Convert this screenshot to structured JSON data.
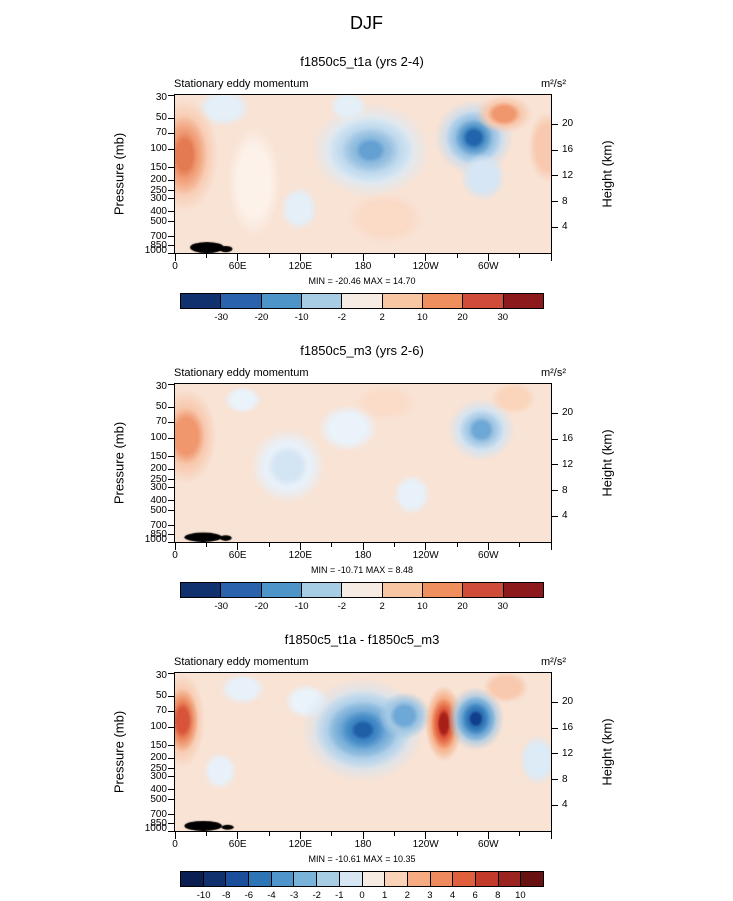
{
  "page_title": "DJF",
  "chart_data": [
    {
      "type": "heatmap",
      "title": "f1850c5_t1a (yrs 2-4)",
      "subtitle": "Stationary eddy momentum",
      "units": "m²/s²",
      "min": -20.46,
      "max": 14.7,
      "minmax_text": "MIN = -20.46  MAX = 14.70",
      "x": {
        "ticks": [
          "0",
          "60E",
          "120E",
          "180",
          "120W",
          "60W"
        ],
        "range_deg": [
          0,
          360
        ]
      },
      "y_pressure": {
        "label": "Pressure (mb)",
        "scale": "log",
        "ticks": [
          30,
          50,
          70,
          100,
          150,
          200,
          250,
          300,
          400,
          500,
          700,
          850,
          1000
        ]
      },
      "y_height": {
        "label": "Height (km)",
        "ticks": [
          20,
          16,
          12,
          8,
          4
        ]
      },
      "colorbar": {
        "labels": [
          "-30",
          "-20",
          "-10",
          "-2",
          "2",
          "10",
          "20",
          "30"
        ],
        "colors": [
          "#10306e",
          "#2a62ad",
          "#4d94c9",
          "#a6cde4",
          "#f6ece3",
          "#f9c6a4",
          "#ef8f5e",
          "#cf4c38",
          "#8c1a1c"
        ]
      },
      "field": {
        "base": "#f9e3d5",
        "features": [
          {
            "x": 0.13,
            "y": 0.08,
            "rings": [
              {
                "rx": 0.07,
                "ry": 0.12,
                "color": "#e4eff8"
              }
            ]
          },
          {
            "x": 0.025,
            "y": 0.38,
            "rings": [
              {
                "rx": 0.09,
                "ry": 0.36,
                "color": "#f8c9ae"
              },
              {
                "rx": 0.06,
                "ry": 0.25,
                "color": "#f19e77"
              },
              {
                "rx": 0.035,
                "ry": 0.15,
                "color": "#e47a52"
              }
            ]
          },
          {
            "x": 0.21,
            "y": 0.55,
            "rings": [
              {
                "rx": 0.07,
                "ry": 0.35,
                "color": "#fdf2ea"
              }
            ]
          },
          {
            "x": 0.33,
            "y": 0.72,
            "rings": [
              {
                "rx": 0.05,
                "ry": 0.14,
                "color": "#e4eff8"
              }
            ]
          },
          {
            "x": 0.52,
            "y": 0.35,
            "rings": [
              {
                "rx": 0.16,
                "ry": 0.3,
                "color": "#dcebf6"
              },
              {
                "rx": 0.115,
                "ry": 0.21,
                "color": "#b9d5eb"
              },
              {
                "rx": 0.075,
                "ry": 0.14,
                "color": "#8fbcdf"
              },
              {
                "rx": 0.042,
                "ry": 0.08,
                "color": "#64a1d2"
              }
            ]
          },
          {
            "x": 0.46,
            "y": 0.07,
            "rings": [
              {
                "rx": 0.05,
                "ry": 0.09,
                "color": "#e4eff8"
              }
            ]
          },
          {
            "x": 0.795,
            "y": 0.27,
            "rings": [
              {
                "rx": 0.105,
                "ry": 0.24,
                "color": "#c6dcf0"
              },
              {
                "rx": 0.075,
                "ry": 0.17,
                "color": "#8fbcdf"
              },
              {
                "rx": 0.05,
                "ry": 0.115,
                "color": "#4f92c9"
              },
              {
                "rx": 0.03,
                "ry": 0.07,
                "color": "#2166ac"
              }
            ]
          },
          {
            "x": 0.82,
            "y": 0.52,
            "rings": [
              {
                "rx": 0.06,
                "ry": 0.15,
                "color": "#d6e6f4"
              }
            ]
          },
          {
            "x": 0.875,
            "y": 0.12,
            "rings": [
              {
                "rx": 0.075,
                "ry": 0.12,
                "color": "#f8c9ae"
              },
              {
                "rx": 0.045,
                "ry": 0.075,
                "color": "#f0976e"
              }
            ]
          },
          {
            "x": 0.99,
            "y": 0.33,
            "rings": [
              {
                "rx": 0.05,
                "ry": 0.22,
                "color": "#f8c9ae"
              }
            ]
          },
          {
            "x": 0.56,
            "y": 0.78,
            "rings": [
              {
                "rx": 0.1,
                "ry": 0.16,
                "color": "#fbdac6"
              }
            ]
          },
          {
            "x": 0.085,
            "y": 0.965,
            "hard": true,
            "rings": [
              {
                "rx": 0.045,
                "ry": 0.035,
                "color": "#000000"
              }
            ]
          },
          {
            "x": 0.135,
            "y": 0.975,
            "hard": true,
            "rings": [
              {
                "rx": 0.018,
                "ry": 0.02,
                "color": "#000000"
              }
            ]
          }
        ]
      }
    },
    {
      "type": "heatmap",
      "title": "f1850c5_m3 (yrs 2-6)",
      "subtitle": "Stationary eddy momentum",
      "units": "m²/s²",
      "min": -10.71,
      "max": 8.48,
      "minmax_text": "MIN = -10.71  MAX = 8.48",
      "x": {
        "ticks": [
          "0",
          "60E",
          "120E",
          "180",
          "120W",
          "60W"
        ],
        "range_deg": [
          0,
          360
        ]
      },
      "y_pressure": {
        "label": "Pressure (mb)",
        "scale": "log",
        "ticks": [
          30,
          50,
          70,
          100,
          150,
          200,
          250,
          300,
          400,
          500,
          700,
          850,
          1000
        ]
      },
      "y_height": {
        "label": "Height (km)",
        "ticks": [
          20,
          16,
          12,
          8,
          4
        ]
      },
      "colorbar": {
        "labels": [
          "-30",
          "-20",
          "-10",
          "-2",
          "2",
          "10",
          "20",
          "30"
        ],
        "colors": [
          "#10306e",
          "#2a62ad",
          "#4d94c9",
          "#a6cde4",
          "#f6ece3",
          "#f9c6a4",
          "#ef8f5e",
          "#cf4c38",
          "#8c1a1c"
        ]
      },
      "field": {
        "base": "#f9e3d5",
        "features": [
          {
            "x": 0.03,
            "y": 0.33,
            "rings": [
              {
                "rx": 0.08,
                "ry": 0.3,
                "color": "#f8c9ae"
              },
              {
                "rx": 0.05,
                "ry": 0.18,
                "color": "#f0976e"
              }
            ]
          },
          {
            "x": 0.3,
            "y": 0.52,
            "rings": [
              {
                "rx": 0.1,
                "ry": 0.24,
                "color": "#e8f1f9"
              },
              {
                "rx": 0.055,
                "ry": 0.13,
                "color": "#d3e4f3"
              }
            ]
          },
          {
            "x": 0.46,
            "y": 0.28,
            "rings": [
              {
                "rx": 0.08,
                "ry": 0.15,
                "color": "#eaf2fa"
              }
            ]
          },
          {
            "x": 0.815,
            "y": 0.29,
            "rings": [
              {
                "rx": 0.09,
                "ry": 0.2,
                "color": "#d3e4f3"
              },
              {
                "rx": 0.06,
                "ry": 0.13,
                "color": "#a3c8e4"
              },
              {
                "rx": 0.035,
                "ry": 0.08,
                "color": "#6ea8d6"
              }
            ]
          },
          {
            "x": 0.9,
            "y": 0.09,
            "rings": [
              {
                "rx": 0.06,
                "ry": 0.1,
                "color": "#fad5bb"
              }
            ]
          },
          {
            "x": 0.56,
            "y": 0.12,
            "rings": [
              {
                "rx": 0.08,
                "ry": 0.11,
                "color": "#fbdcc9"
              }
            ]
          },
          {
            "x": 0.63,
            "y": 0.7,
            "rings": [
              {
                "rx": 0.05,
                "ry": 0.13,
                "color": "#e8f1f9"
              }
            ]
          },
          {
            "x": 0.18,
            "y": 0.1,
            "rings": [
              {
                "rx": 0.05,
                "ry": 0.09,
                "color": "#eaf2fa"
              }
            ]
          },
          {
            "x": 0.075,
            "y": 0.97,
            "hard": true,
            "rings": [
              {
                "rx": 0.05,
                "ry": 0.03,
                "color": "#000000"
              }
            ]
          },
          {
            "x": 0.135,
            "y": 0.975,
            "hard": true,
            "rings": [
              {
                "rx": 0.016,
                "ry": 0.018,
                "color": "#000000"
              }
            ]
          }
        ]
      }
    },
    {
      "type": "heatmap",
      "title": "f1850c5_t1a - f1850c5_m3",
      "subtitle": "Stationary eddy momentum",
      "units": "m²/s²",
      "min": -10.61,
      "max": 10.35,
      "minmax_text": "MIN = -10.61  MAX = 10.35",
      "x": {
        "ticks": [
          "0",
          "60E",
          "120E",
          "180",
          "120W",
          "60W"
        ],
        "range_deg": [
          0,
          360
        ]
      },
      "y_pressure": {
        "label": "Pressure (mb)",
        "scale": "log",
        "ticks": [
          30,
          50,
          70,
          100,
          150,
          200,
          250,
          300,
          400,
          500,
          700,
          850,
          1000
        ]
      },
      "y_height": {
        "label": "Height (km)",
        "ticks": [
          20,
          16,
          12,
          8,
          4
        ]
      },
      "colorbar": {
        "labels": [
          "-10",
          "-8",
          "-6",
          "-4",
          "-3",
          "-2",
          "-1",
          "0",
          "1",
          "2",
          "3",
          "4",
          "6",
          "8",
          "10"
        ],
        "colors": [
          "#0a1e52",
          "#10316e",
          "#1b4f9c",
          "#2e75b6",
          "#4f94ca",
          "#7ab3d9",
          "#a6cde4",
          "#d6e7f3",
          "#f6ece3",
          "#fbd3b8",
          "#f7ab82",
          "#ef8a5e",
          "#e0603d",
          "#c23b2a",
          "#9c2420",
          "#671111"
        ]
      },
      "field": {
        "base": "#f9e3d5",
        "features": [
          {
            "x": 0.02,
            "y": 0.3,
            "rings": [
              {
                "rx": 0.06,
                "ry": 0.3,
                "color": "#f8c9ae"
              },
              {
                "rx": 0.042,
                "ry": 0.2,
                "color": "#ec8a60"
              },
              {
                "rx": 0.026,
                "ry": 0.12,
                "color": "#d7543a"
              }
            ]
          },
          {
            "x": 0.18,
            "y": 0.1,
            "rings": [
              {
                "rx": 0.06,
                "ry": 0.1,
                "color": "#e8f1f9"
              }
            ]
          },
          {
            "x": 0.12,
            "y": 0.62,
            "rings": [
              {
                "rx": 0.045,
                "ry": 0.12,
                "color": "#e8f1f9"
              }
            ]
          },
          {
            "x": 0.35,
            "y": 0.18,
            "rings": [
              {
                "rx": 0.06,
                "ry": 0.11,
                "color": "#eaf2fa"
              }
            ]
          },
          {
            "x": 0.5,
            "y": 0.36,
            "rings": [
              {
                "rx": 0.165,
                "ry": 0.33,
                "color": "#d3e4f3"
              },
              {
                "rx": 0.13,
                "ry": 0.25,
                "color": "#a3c8e4"
              },
              {
                "rx": 0.095,
                "ry": 0.18,
                "color": "#6ea8d6"
              },
              {
                "rx": 0.06,
                "ry": 0.12,
                "color": "#3f87c5"
              },
              {
                "rx": 0.033,
                "ry": 0.065,
                "color": "#1f5fa8"
              }
            ]
          },
          {
            "x": 0.61,
            "y": 0.27,
            "rings": [
              {
                "rx": 0.07,
                "ry": 0.15,
                "color": "#a3c8e4"
              },
              {
                "rx": 0.04,
                "ry": 0.09,
                "color": "#6ea8d6"
              }
            ]
          },
          {
            "x": 0.715,
            "y": 0.32,
            "rings": [
              {
                "rx": 0.05,
                "ry": 0.24,
                "color": "#f5a87e"
              },
              {
                "rx": 0.033,
                "ry": 0.16,
                "color": "#e2603f"
              },
              {
                "rx": 0.018,
                "ry": 0.095,
                "color": "#a81f18"
              }
            ]
          },
          {
            "x": 0.8,
            "y": 0.29,
            "rings": [
              {
                "rx": 0.075,
                "ry": 0.2,
                "color": "#a3c8e4"
              },
              {
                "rx": 0.054,
                "ry": 0.145,
                "color": "#5b9bd0"
              },
              {
                "rx": 0.036,
                "ry": 0.1,
                "color": "#2e75b6"
              },
              {
                "rx": 0.02,
                "ry": 0.055,
                "color": "#123f8c"
              }
            ]
          },
          {
            "x": 0.88,
            "y": 0.09,
            "rings": [
              {
                "rx": 0.06,
                "ry": 0.1,
                "color": "#f8c9ae"
              }
            ]
          },
          {
            "x": 0.965,
            "y": 0.55,
            "rings": [
              {
                "rx": 0.05,
                "ry": 0.16,
                "color": "#dcebf6"
              }
            ]
          },
          {
            "x": 0.075,
            "y": 0.968,
            "hard": true,
            "rings": [
              {
                "rx": 0.05,
                "ry": 0.032,
                "color": "#000000"
              }
            ]
          },
          {
            "x": 0.14,
            "y": 0.976,
            "hard": true,
            "rings": [
              {
                "rx": 0.016,
                "ry": 0.016,
                "color": "#000000"
              }
            ]
          }
        ]
      }
    }
  ]
}
